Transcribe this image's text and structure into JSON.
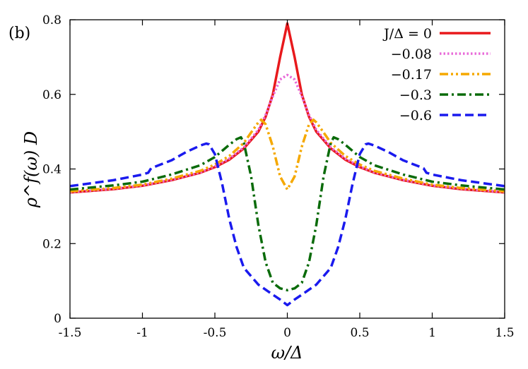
{
  "chart_data": {
    "type": "line",
    "panel_label": "(b)",
    "xlabel": "ω/Δ",
    "ylabel": "ρ^f(ω) D",
    "xlim": [
      -1.5,
      1.5
    ],
    "ylim": [
      0,
      0.8
    ],
    "xticks": [
      "-1.5",
      "-1",
      "-0.5",
      "0",
      "0.5",
      "1",
      "1.5"
    ],
    "yticks": [
      "0",
      "0.2",
      "0.4",
      "0.6",
      "0.8"
    ],
    "grid": false,
    "legend_position": "top-right",
    "series": [
      {
        "name": "J/Δ = 0",
        "color": "#e8191c",
        "dash": "solid",
        "x": [
          -1.5,
          -1.2,
          -1.0,
          -0.8,
          -0.6,
          -0.5,
          -0.4,
          -0.3,
          -0.2,
          -0.15,
          -0.1,
          -0.05,
          0,
          0.05,
          0.1,
          0.15,
          0.2,
          0.3,
          0.4,
          0.5,
          0.6,
          0.8,
          1.0,
          1.2,
          1.5
        ],
        "y": [
          0.337,
          0.346,
          0.355,
          0.37,
          0.39,
          0.405,
          0.425,
          0.455,
          0.5,
          0.54,
          0.6,
          0.7,
          0.79,
          0.7,
          0.6,
          0.54,
          0.5,
          0.455,
          0.425,
          0.405,
          0.39,
          0.37,
          0.355,
          0.346,
          0.337
        ]
      },
      {
        "name": "−0.08",
        "color": "#e86ad8",
        "dash": "dotted",
        "x": [
          -1.5,
          -1.2,
          -1.0,
          -0.8,
          -0.6,
          -0.5,
          -0.4,
          -0.3,
          -0.2,
          -0.15,
          -0.1,
          -0.05,
          0,
          0.05,
          0.1,
          0.15,
          0.2,
          0.3,
          0.4,
          0.5,
          0.6,
          0.8,
          1.0,
          1.2,
          1.5
        ],
        "y": [
          0.338,
          0.347,
          0.356,
          0.371,
          0.391,
          0.407,
          0.428,
          0.458,
          0.505,
          0.545,
          0.595,
          0.64,
          0.652,
          0.64,
          0.595,
          0.545,
          0.505,
          0.458,
          0.428,
          0.407,
          0.391,
          0.371,
          0.356,
          0.347,
          0.338
        ]
      },
      {
        "name": "−0.17",
        "color": "#f5a800",
        "dash": "dashdotdot",
        "x": [
          -1.5,
          -1.2,
          -1.0,
          -0.8,
          -0.6,
          -0.5,
          -0.4,
          -0.3,
          -0.25,
          -0.2,
          -0.18,
          -0.15,
          -0.1,
          -0.05,
          0,
          0.05,
          0.1,
          0.15,
          0.18,
          0.2,
          0.25,
          0.3,
          0.4,
          0.5,
          0.6,
          0.8,
          1.0,
          1.2,
          1.5
        ],
        "y": [
          0.34,
          0.349,
          0.358,
          0.374,
          0.395,
          0.412,
          0.435,
          0.47,
          0.498,
          0.525,
          0.532,
          0.52,
          0.46,
          0.38,
          0.345,
          0.38,
          0.46,
          0.52,
          0.532,
          0.525,
          0.498,
          0.47,
          0.435,
          0.412,
          0.395,
          0.374,
          0.358,
          0.349,
          0.34
        ]
      },
      {
        "name": "−0.3",
        "color": "#0a6b0a",
        "dash": "dashdot",
        "x": [
          -1.5,
          -1.2,
          -1.0,
          -0.8,
          -0.6,
          -0.5,
          -0.4,
          -0.35,
          -0.32,
          -0.3,
          -0.25,
          -0.2,
          -0.15,
          -0.1,
          -0.05,
          0,
          0.05,
          0.1,
          0.15,
          0.2,
          0.25,
          0.3,
          0.32,
          0.35,
          0.4,
          0.5,
          0.6,
          0.8,
          1.0,
          1.2,
          1.5
        ],
        "y": [
          0.345,
          0.356,
          0.366,
          0.385,
          0.41,
          0.432,
          0.465,
          0.48,
          0.485,
          0.47,
          0.38,
          0.25,
          0.15,
          0.095,
          0.08,
          0.075,
          0.08,
          0.095,
          0.15,
          0.25,
          0.38,
          0.47,
          0.485,
          0.48,
          0.465,
          0.432,
          0.41,
          0.385,
          0.366,
          0.356,
          0.345
        ]
      },
      {
        "name": "−0.6",
        "color": "#1a1aee",
        "dash": "dashed",
        "x": [
          -1.5,
          -1.2,
          -1.0,
          -0.96,
          -0.94,
          -0.8,
          -0.7,
          -0.6,
          -0.56,
          -0.54,
          -0.5,
          -0.45,
          -0.4,
          -0.35,
          -0.3,
          -0.2,
          -0.1,
          -0.05,
          0,
          0.05,
          0.1,
          0.2,
          0.3,
          0.35,
          0.4,
          0.45,
          0.5,
          0.54,
          0.56,
          0.6,
          0.7,
          0.8,
          0.94,
          0.96,
          1.0,
          1.2,
          1.5
        ],
        "y": [
          0.354,
          0.37,
          0.385,
          0.39,
          0.402,
          0.423,
          0.445,
          0.463,
          0.468,
          0.466,
          0.44,
          0.36,
          0.265,
          0.19,
          0.135,
          0.09,
          0.063,
          0.05,
          0.035,
          0.05,
          0.063,
          0.09,
          0.135,
          0.19,
          0.265,
          0.36,
          0.44,
          0.466,
          0.468,
          0.463,
          0.445,
          0.423,
          0.402,
          0.39,
          0.385,
          0.37,
          0.354
        ]
      }
    ]
  }
}
